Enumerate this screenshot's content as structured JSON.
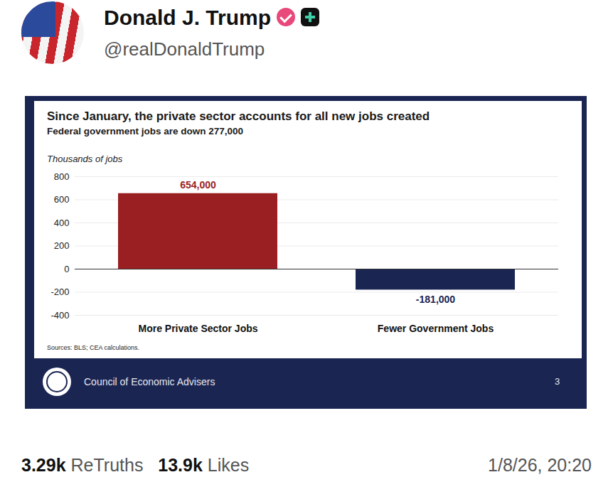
{
  "post": {
    "name": "Donald J. Trump",
    "handle": "@realDonaldTrump",
    "retruths": "3.29k",
    "retruths_label": "ReTruths",
    "likes": "13.9k",
    "likes_label": "Likes",
    "timestamp": "1/8/26, 20:20"
  },
  "chart_data": {
    "type": "bar",
    "title": "Since January, the private sector accounts for all new jobs created",
    "subtitle": "Federal government jobs are down 277,000",
    "y_label": "Thousands of jobs",
    "categories": [
      "More Private Sector Jobs",
      "Fewer Government Jobs"
    ],
    "values": [
      654,
      -181
    ],
    "value_labels": [
      "654,000",
      "-181,000"
    ],
    "colors": [
      "#9a1f22",
      "#1b2552"
    ],
    "ylim": [
      -400,
      800
    ],
    "yticks": [
      -400,
      -200,
      0,
      200,
      400,
      600,
      800
    ],
    "grid": true,
    "data_labels": true,
    "source": "Sources: BLS; CEA calculations.",
    "footer": "Council of Economic Advisers",
    "page": 3
  }
}
